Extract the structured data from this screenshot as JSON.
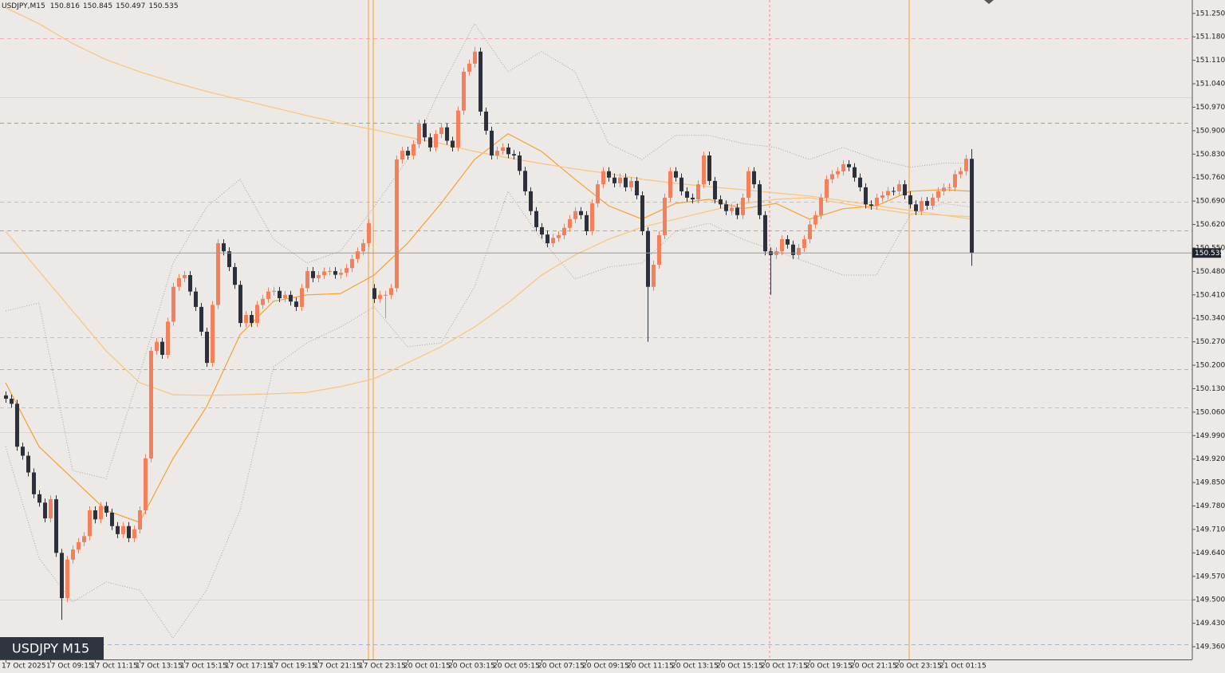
{
  "chart_data": {
    "type": "candlestick",
    "symbol": "USDJPY,M15",
    "watermark": "USDJPY M15",
    "bull_color": "#f47f5b",
    "bear_color": "#2b303a",
    "categories": [
      "17 Oct 2025",
      null,
      null,
      null,
      null,
      null,
      null,
      null,
      "17 Oct 09:15",
      null,
      null,
      null,
      null,
      null,
      null,
      null,
      "17 Oct 11:15",
      null,
      null,
      null,
      null,
      null,
      null,
      null,
      "17 Oct 13:15",
      null,
      null,
      null,
      null,
      null,
      null,
      null,
      "17 Oct 15:15",
      null,
      null,
      null,
      null,
      null,
      null,
      null,
      "17 Oct 17:15",
      null,
      null,
      null,
      null,
      null,
      null,
      null,
      "17 Oct 19:15",
      null,
      null,
      null,
      null,
      null,
      null,
      null,
      "17 Oct 21:15",
      null,
      null,
      null,
      null,
      null,
      null,
      null,
      "17 Oct 23:15",
      null,
      null,
      null,
      null,
      null,
      null,
      null,
      "20 Oct 01:15",
      null,
      null,
      null,
      null,
      null,
      null,
      null,
      "20 Oct 03:15",
      null,
      null,
      null,
      null,
      null,
      null,
      null,
      "20 Oct 05:15",
      null,
      null,
      null,
      null,
      null,
      null,
      null,
      "20 Oct 07:15",
      null,
      null,
      null,
      null,
      null,
      null,
      null,
      "20 Oct 09:15",
      null,
      null,
      null,
      null,
      null,
      null,
      null,
      "20 Oct 11:15",
      null,
      null,
      null,
      null,
      null,
      null,
      null,
      "20 Oct 13:15",
      null,
      null,
      null,
      null,
      null,
      null,
      null,
      "20 Oct 15:15",
      null,
      null,
      null,
      null,
      null,
      null,
      null,
      "20 Oct 17:15",
      null,
      null,
      null,
      null,
      null,
      null,
      null,
      "20 Oct 19:15",
      null,
      null,
      null,
      null,
      null,
      null,
      null,
      "20 Oct 21:15",
      null,
      null,
      null,
      null,
      null,
      null,
      null,
      "20 Oct 23:15",
      null,
      null,
      null,
      null,
      null,
      null,
      null,
      "21 Oct 01:15",
      null,
      null,
      null,
      null,
      null
    ],
    "open": [
      150.11,
      150.1,
      150.085,
      149.957,
      149.93,
      149.88,
      149.815,
      149.79,
      149.743,
      149.8,
      149.64,
      149.505,
      149.62,
      149.65,
      149.672,
      149.69,
      149.767,
      149.74,
      149.78,
      149.76,
      149.72,
      149.696,
      149.72,
      149.684,
      149.71,
      149.767,
      149.922,
      150.243,
      150.27,
      150.231,
      150.33,
      150.434,
      150.46,
      150.469,
      150.42,
      150.374,
      150.3,
      150.207,
      150.38,
      150.564,
      150.54,
      150.493,
      150.44,
      150.326,
      150.35,
      150.326,
      150.38,
      150.398,
      150.42,
      150.422,
      150.4,
      150.41,
      150.39,
      150.374,
      150.43,
      150.481,
      150.46,
      150.469,
      150.48,
      150.481,
      150.47,
      150.476,
      150.49,
      150.517,
      150.54,
      150.564,
      150.43,
      150.398,
      150.41,
      150.41,
      150.43,
      150.814,
      150.84,
      150.826,
      150.86,
      150.921,
      150.88,
      150.85,
      150.89,
      150.91,
      150.87,
      150.85,
      150.96,
      151.076,
      151.1,
      151.136,
      150.957,
      150.9,
      150.826,
      150.84,
      150.85,
      150.83,
      150.826,
      150.78,
      150.719,
      150.66,
      150.612,
      150.59,
      150.564,
      150.58,
      150.588,
      150.61,
      150.636,
      150.66,
      150.648,
      150.6,
      150.683,
      150.74,
      150.779,
      150.76,
      150.743,
      150.76,
      150.731,
      150.75,
      150.707,
      150.6,
      150.434,
      150.5,
      150.588,
      150.7,
      150.779,
      150.76,
      150.719,
      150.7,
      150.695,
      150.74,
      150.826,
      150.75,
      150.695,
      150.68,
      150.66,
      150.67,
      150.648,
      150.7,
      150.779,
      150.74,
      150.648,
      150.54,
      150.529,
      150.54,
      150.576,
      150.56,
      150.529,
      150.55,
      150.576,
      150.62,
      150.648,
      150.7,
      150.755,
      150.77,
      150.779,
      150.8,
      150.791,
      150.76,
      150.731,
      150.68,
      150.676,
      150.7,
      150.707,
      150.72,
      150.719,
      150.74,
      150.707,
      150.68,
      150.66,
      150.69,
      150.676,
      150.7,
      150.719,
      150.73,
      150.731,
      150.77,
      150.779,
      150.816
    ],
    "high": [
      150.122,
      150.112,
      150.097,
      149.969,
      149.942,
      149.892,
      149.827,
      149.802,
      149.812,
      149.812,
      149.652,
      149.632,
      149.662,
      149.684,
      149.702,
      149.779,
      149.779,
      149.792,
      149.792,
      149.772,
      149.732,
      149.732,
      149.732,
      149.722,
      149.779,
      149.934,
      150.255,
      150.282,
      150.282,
      150.342,
      150.446,
      150.472,
      150.481,
      150.481,
      150.432,
      150.386,
      150.312,
      150.392,
      150.576,
      150.576,
      150.552,
      150.505,
      150.452,
      150.362,
      150.362,
      150.392,
      150.41,
      150.432,
      150.434,
      150.434,
      150.422,
      150.422,
      150.402,
      150.442,
      150.493,
      150.493,
      150.481,
      150.492,
      150.493,
      150.493,
      150.488,
      150.502,
      150.529,
      150.552,
      150.576,
      150.636,
      150.442,
      150.422,
      150.422,
      150.442,
      150.826,
      150.852,
      150.852,
      150.872,
      150.933,
      150.933,
      150.892,
      150.902,
      150.922,
      150.922,
      150.882,
      150.972,
      151.088,
      151.112,
      151.15,
      151.148,
      150.969,
      150.912,
      150.852,
      150.862,
      150.862,
      150.842,
      150.838,
      150.792,
      150.731,
      150.672,
      150.624,
      150.602,
      150.592,
      150.6,
      150.622,
      150.648,
      150.672,
      150.672,
      150.66,
      150.695,
      150.752,
      150.791,
      150.791,
      150.772,
      150.772,
      150.772,
      150.762,
      150.762,
      150.719,
      150.612,
      150.512,
      150.6,
      150.712,
      150.791,
      150.791,
      150.772,
      150.731,
      150.712,
      150.752,
      150.838,
      150.838,
      150.762,
      150.707,
      150.692,
      150.682,
      150.682,
      150.712,
      150.791,
      150.791,
      150.752,
      150.66,
      150.552,
      150.552,
      150.588,
      150.588,
      150.572,
      150.562,
      150.588,
      150.632,
      150.66,
      150.712,
      150.767,
      150.782,
      150.791,
      150.812,
      150.812,
      150.803,
      150.772,
      150.743,
      150.692,
      150.712,
      150.719,
      150.732,
      150.732,
      150.752,
      150.752,
      150.719,
      150.692,
      150.702,
      150.702,
      150.712,
      150.731,
      150.742,
      150.743,
      150.782,
      150.791,
      150.828,
      150.845
    ],
    "low": [
      150.088,
      150.073,
      149.945,
      149.918,
      149.868,
      149.803,
      149.778,
      149.731,
      149.731,
      149.628,
      149.44,
      149.493,
      149.608,
      149.638,
      149.66,
      149.678,
      149.728,
      149.728,
      149.748,
      149.708,
      149.684,
      149.684,
      149.672,
      149.672,
      149.698,
      149.755,
      149.91,
      150.231,
      150.219,
      150.219,
      150.318,
      150.422,
      150.448,
      150.408,
      150.362,
      150.288,
      150.195,
      150.195,
      150.368,
      150.528,
      150.481,
      150.428,
      150.314,
      150.314,
      150.314,
      150.314,
      150.368,
      150.386,
      150.408,
      150.388,
      150.388,
      150.378,
      150.362,
      150.362,
      150.418,
      150.448,
      150.448,
      150.457,
      150.468,
      150.458,
      150.458,
      150.464,
      150.478,
      150.505,
      150.528,
      150.552,
      150.386,
      150.386,
      150.34,
      150.398,
      150.418,
      150.802,
      150.814,
      150.814,
      150.848,
      150.868,
      150.838,
      150.838,
      150.878,
      150.858,
      150.838,
      150.838,
      150.948,
      151.064,
      151.088,
      150.945,
      150.888,
      150.814,
      150.814,
      150.828,
      150.818,
      150.814,
      150.768,
      150.707,
      150.648,
      150.6,
      150.578,
      150.552,
      150.552,
      150.568,
      150.576,
      150.598,
      150.624,
      150.636,
      150.588,
      150.588,
      150.671,
      150.728,
      150.748,
      150.731,
      150.731,
      150.719,
      150.719,
      150.695,
      150.588,
      150.27,
      150.422,
      150.488,
      150.576,
      150.688,
      150.748,
      150.707,
      150.688,
      150.683,
      150.683,
      150.728,
      150.738,
      150.683,
      150.668,
      150.648,
      150.648,
      150.636,
      150.636,
      150.688,
      150.728,
      150.636,
      150.528,
      150.41,
      150.517,
      150.528,
      150.548,
      150.517,
      150.517,
      150.538,
      150.564,
      150.608,
      150.636,
      150.688,
      150.743,
      150.758,
      150.767,
      150.779,
      150.748,
      150.719,
      150.668,
      150.664,
      150.664,
      150.688,
      150.695,
      150.707,
      150.707,
      150.695,
      150.668,
      150.648,
      150.648,
      150.664,
      150.664,
      150.688,
      150.707,
      150.718,
      150.719,
      150.758,
      150.767,
      150.497
    ],
    "close": [
      150.1,
      150.085,
      149.957,
      149.93,
      149.88,
      149.815,
      149.79,
      149.743,
      149.8,
      149.64,
      149.505,
      149.62,
      149.65,
      149.672,
      149.69,
      149.767,
      149.74,
      149.78,
      149.76,
      149.72,
      149.696,
      149.72,
      149.684,
      149.71,
      149.767,
      149.922,
      150.243,
      150.27,
      150.231,
      150.33,
      150.434,
      150.46,
      150.469,
      150.42,
      150.374,
      150.3,
      150.207,
      150.38,
      150.564,
      150.54,
      150.493,
      150.44,
      150.326,
      150.35,
      150.326,
      150.38,
      150.398,
      150.42,
      150.422,
      150.4,
      150.41,
      150.39,
      150.374,
      150.43,
      150.481,
      150.46,
      150.469,
      150.48,
      150.481,
      150.47,
      150.476,
      150.49,
      150.517,
      150.54,
      150.564,
      150.624,
      150.398,
      150.41,
      150.41,
      150.43,
      150.814,
      150.84,
      150.826,
      150.86,
      150.921,
      150.88,
      150.85,
      150.89,
      150.91,
      150.87,
      150.85,
      150.96,
      151.076,
      151.1,
      151.136,
      150.957,
      150.9,
      150.826,
      150.84,
      150.85,
      150.83,
      150.826,
      150.78,
      150.719,
      150.66,
      150.612,
      150.59,
      150.564,
      150.58,
      150.588,
      150.61,
      150.636,
      150.66,
      150.648,
      150.6,
      150.683,
      150.74,
      150.779,
      150.76,
      150.743,
      150.76,
      150.731,
      150.75,
      150.707,
      150.6,
      150.434,
      150.5,
      150.588,
      150.7,
      150.779,
      150.76,
      150.719,
      150.7,
      150.695,
      150.74,
      150.826,
      150.75,
      150.695,
      150.68,
      150.66,
      150.67,
      150.648,
      150.7,
      150.779,
      150.74,
      150.648,
      150.54,
      150.529,
      150.54,
      150.576,
      150.56,
      150.529,
      150.55,
      150.576,
      150.62,
      150.648,
      150.7,
      150.755,
      150.77,
      150.779,
      150.8,
      150.791,
      150.76,
      150.731,
      150.68,
      150.676,
      150.7,
      150.707,
      150.72,
      150.719,
      150.74,
      150.707,
      150.68,
      150.66,
      150.69,
      150.676,
      150.7,
      150.719,
      150.73,
      150.731,
      150.77,
      150.779,
      150.816,
      150.535
    ],
    "indicator_x": [
      0,
      6,
      12,
      18,
      24,
      30,
      36,
      42,
      48,
      54,
      60,
      66,
      72,
      78,
      84,
      90,
      96,
      102,
      108,
      114,
      120,
      126,
      132,
      138,
      144,
      150,
      156,
      162,
      168,
      173
    ],
    "indicators": [
      {
        "color": "#f6a035",
        "style": "solid",
        "values": [
          150.148,
          149.957,
          149.862,
          149.767,
          149.731,
          149.922,
          150.076,
          150.291,
          150.391,
          150.41,
          150.414,
          150.469,
          150.564,
          150.683,
          150.814,
          150.891,
          150.838,
          150.755,
          150.676,
          150.636,
          150.683,
          150.695,
          150.667,
          150.683,
          150.636,
          150.667,
          150.676,
          150.719,
          150.724,
          150.719
        ]
      },
      {
        "color": "#fbc37d",
        "style": "solid",
        "values": [
          151.267,
          151.219,
          151.16,
          151.112,
          151.076,
          151.045,
          151.017,
          150.993,
          150.969,
          150.945,
          150.922,
          150.903,
          150.881,
          150.862,
          150.838,
          150.819,
          150.802,
          150.786,
          150.772,
          150.755,
          150.743,
          150.733,
          150.724,
          150.714,
          150.705,
          150.691,
          150.676,
          150.662,
          150.648,
          150.636
        ]
      },
      {
        "color": "#fbc37d",
        "style": "solid",
        "values": [
          150.6,
          150.481,
          150.362,
          150.243,
          150.148,
          150.112,
          150.11,
          150.112,
          150.115,
          150.119,
          150.136,
          150.16,
          150.207,
          150.255,
          150.314,
          150.386,
          150.469,
          150.529,
          150.576,
          150.612,
          150.636,
          150.66,
          150.683,
          150.695,
          150.7,
          150.683,
          150.667,
          150.652,
          150.648,
          150.643
        ]
      },
      {
        "color": "#a6a6a6",
        "style": "dotted",
        "values": [
          150.362,
          150.386,
          149.886,
          149.862,
          150.172,
          150.505,
          150.672,
          150.755,
          150.576,
          150.505,
          150.541,
          150.672,
          150.814,
          151.029,
          151.219,
          151.076,
          151.136,
          151.076,
          150.862,
          150.814,
          150.886,
          150.886,
          150.862,
          150.85,
          150.814,
          150.85,
          150.814,
          150.791,
          150.803,
          150.803
        ]
      },
      {
        "color": "#a6a6a6",
        "style": "dotted",
        "values": [
          149.957,
          149.624,
          149.493,
          149.553,
          149.529,
          149.386,
          149.529,
          149.767,
          150.195,
          150.267,
          150.314,
          150.374,
          150.255,
          150.267,
          150.434,
          150.719,
          150.576,
          150.457,
          150.493,
          150.505,
          150.6,
          150.624,
          150.576,
          150.541,
          150.505,
          150.469,
          150.469,
          150.648,
          150.683,
          150.672
        ]
      }
    ],
    "levels": [
      {
        "value": 151.176,
        "color": "#f2a9b8",
        "style": "dashed"
      },
      {
        "value": 150.999,
        "color": "#d6d3d1",
        "style": "solid"
      },
      {
        "value": 150.924,
        "color": "#93a89b",
        "style": "dashed"
      },
      {
        "value": 150.688,
        "color": "#f2a9b8",
        "style": "dashed"
      },
      {
        "value": 150.603,
        "color": "#a9a9a9",
        "style": "dashed"
      },
      {
        "value": 150.284,
        "color": "#f2a9b8",
        "style": "dashed"
      },
      {
        "value": 150.188,
        "color": "#9fb5cf",
        "style": "dashed"
      },
      {
        "value": 150.074,
        "color": "#f2a9b8",
        "style": "dashed"
      },
      {
        "value": 150.0,
        "color": "#d6d3d1",
        "style": "solid"
      },
      {
        "value": 149.5,
        "color": "#d6d3d1",
        "style": "solid"
      },
      {
        "value": 149.367,
        "color": "#9fb5cf",
        "style": "dashed"
      }
    ],
    "ylim": [
      149.322,
      151.29
    ],
    "yticks": [
      {
        "value": 151.25,
        "label": "151.250"
      },
      {
        "value": 151.18,
        "label": "151.180"
      },
      {
        "value": 151.11,
        "label": "151.110"
      },
      {
        "value": 151.04,
        "label": "151.040"
      },
      {
        "value": 150.97,
        "label": "150.970"
      },
      {
        "value": 150.9,
        "label": "150.900"
      },
      {
        "value": 150.83,
        "label": "150.830"
      },
      {
        "value": 150.76,
        "label": "150.760"
      },
      {
        "value": 150.69,
        "label": "150.690"
      },
      {
        "value": 150.62,
        "label": "150.620"
      },
      {
        "value": 150.55,
        "label": "150.550"
      },
      {
        "value": 150.48,
        "label": "150.480"
      },
      {
        "value": 150.41,
        "label": "150.410"
      },
      {
        "value": 150.34,
        "label": "150.340"
      },
      {
        "value": 150.27,
        "label": "150.270"
      },
      {
        "value": 150.2,
        "label": "150.200"
      },
      {
        "value": 150.13,
        "label": "150.130"
      },
      {
        "value": 150.06,
        "label": "150.060"
      },
      {
        "value": 149.99,
        "label": "149.990"
      },
      {
        "value": 149.92,
        "label": "149.920"
      },
      {
        "value": 149.85,
        "label": "149.850"
      },
      {
        "value": 149.78,
        "label": "149.780"
      },
      {
        "value": 149.71,
        "label": "149.710"
      },
      {
        "value": 149.64,
        "label": "149.640"
      },
      {
        "value": 149.57,
        "label": "149.570"
      },
      {
        "value": 149.5,
        "label": "149.500"
      },
      {
        "value": 149.43,
        "label": "149.430"
      },
      {
        "value": 149.36,
        "label": "149.360"
      }
    ]
  }
}
